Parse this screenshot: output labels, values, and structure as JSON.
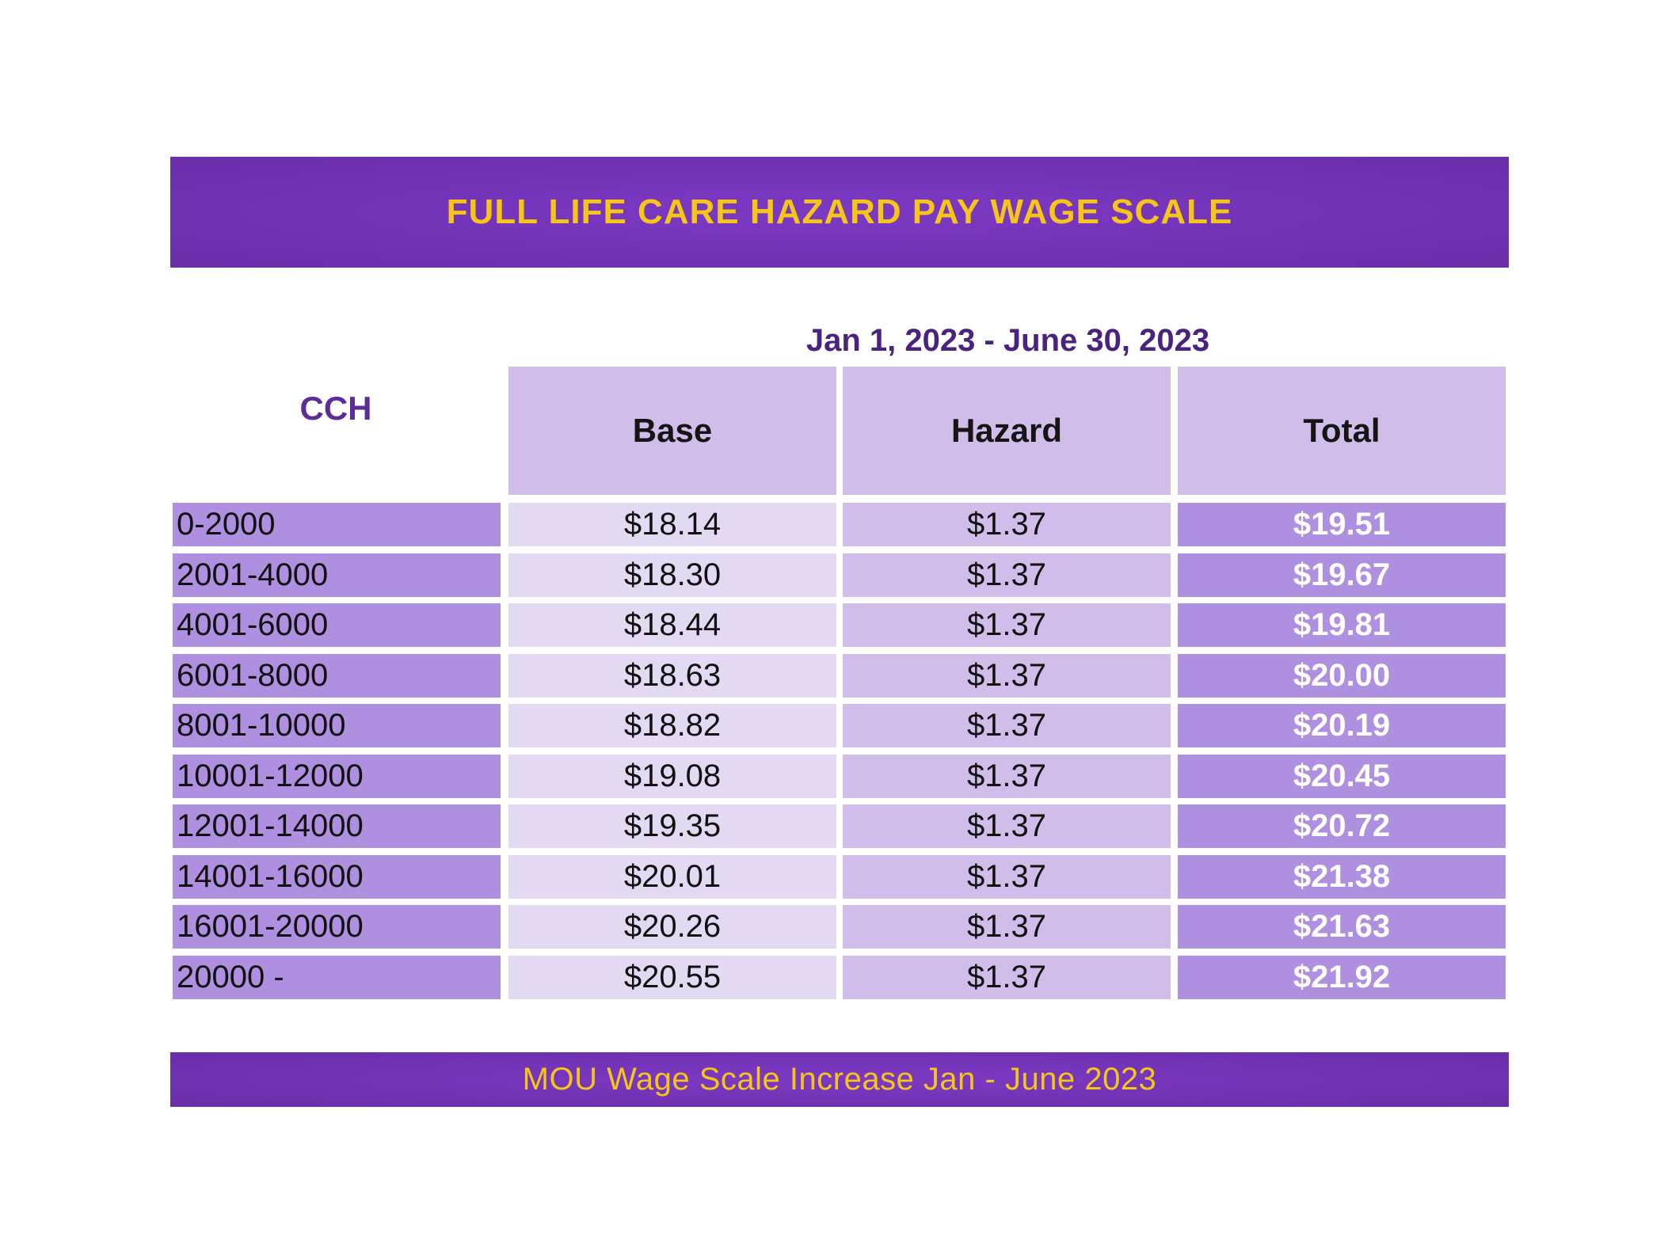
{
  "header": {
    "title": "FULL LIFE CARE HAZARD PAY WAGE SCALE"
  },
  "table": {
    "period": "Jan 1, 2023 - June 30, 2023",
    "row_header": "CCH",
    "columns": [
      "Base",
      "Hazard",
      "Total"
    ],
    "rows": [
      {
        "cch": "0-2000",
        "base": "$18.14",
        "hazard": "$1.37",
        "total": "$19.51"
      },
      {
        "cch": "2001-4000",
        "base": "$18.30",
        "hazard": "$1.37",
        "total": "$19.67"
      },
      {
        "cch": "4001-6000",
        "base": "$18.44",
        "hazard": "$1.37",
        "total": "$19.81"
      },
      {
        "cch": "6001-8000",
        "base": "$18.63",
        "hazard": "$1.37",
        "total": "$20.00"
      },
      {
        "cch": "8001-10000",
        "base": "$18.82",
        "hazard": "$1.37",
        "total": "$20.19"
      },
      {
        "cch": "10001-12000",
        "base": "$19.08",
        "hazard": "$1.37",
        "total": "$20.45"
      },
      {
        "cch": "12001-14000",
        "base": "$19.35",
        "hazard": "$1.37",
        "total": "$20.72"
      },
      {
        "cch": "14001-16000",
        "base": "$20.01",
        "hazard": "$1.37",
        "total": "$21.38"
      },
      {
        "cch": "16001-20000",
        "base": "$20.26",
        "hazard": "$1.37",
        "total": "$21.63"
      },
      {
        "cch": "20000 -",
        "base": "$20.55",
        "hazard": "$1.37",
        "total": "$21.92"
      }
    ]
  },
  "footer": {
    "text": "MOU Wage Scale Increase Jan - June 2023"
  },
  "colors": {
    "banner": "#7434b8",
    "banner_text": "#f5c518",
    "header_cell": "#d1bde9",
    "cch_cell": "#af8fe0",
    "base_cell": "#e4d9f3",
    "hazard_cell": "#d1bde9",
    "total_cell": "#af8fe0",
    "label_purple": "#5a2d97"
  }
}
